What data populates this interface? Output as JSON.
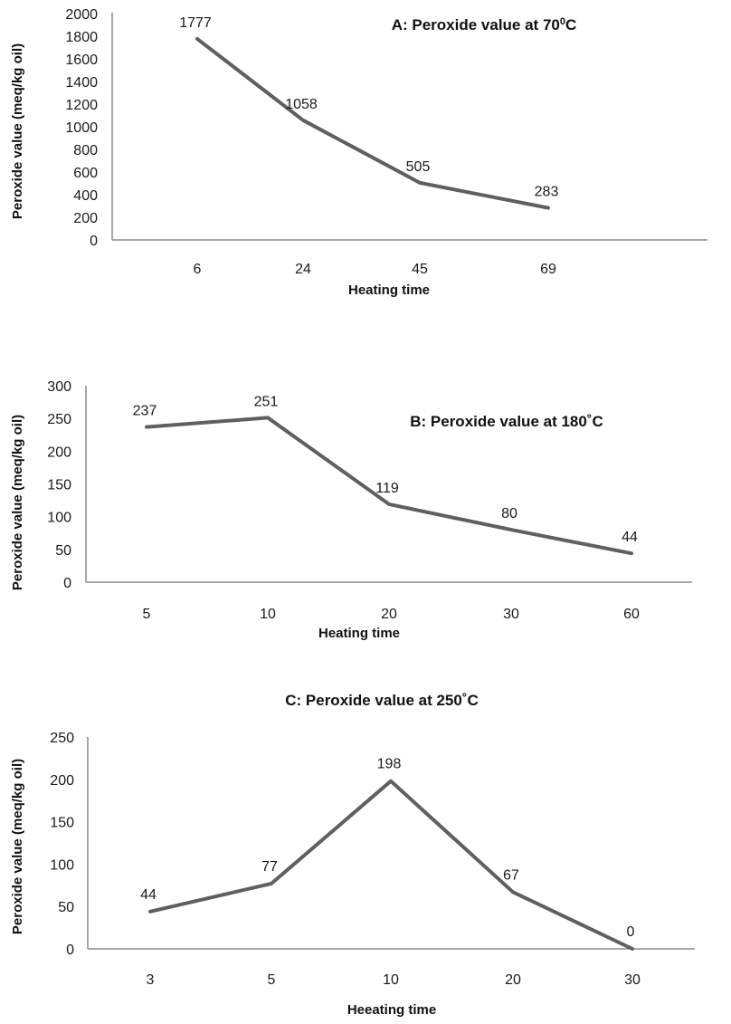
{
  "chart_data": [
    {
      "type": "line",
      "title": "A: Peroxide value at 70",
      "title_sup": "0",
      "title_suffix": "C",
      "xlabel": "Heating time",
      "ylabel": "Peroxide value  (meq/kg oil)",
      "categories": [
        "6",
        "24",
        "45",
        "69"
      ],
      "yticks": [
        "0",
        "200",
        "400",
        "600",
        "800",
        "1000",
        "1200",
        "1400",
        "1600",
        "1800",
        "2000"
      ],
      "ylim": [
        0,
        2000
      ],
      "series": [
        {
          "values": [
            1777,
            1058,
            505,
            283
          ],
          "labels": [
            "1777",
            "1058",
            "505",
            "283"
          ]
        }
      ],
      "color": "#5f5f5f"
    },
    {
      "type": "line",
      "title": "B: Peroxide value at 180˚C",
      "xlabel": "Heating time",
      "ylabel": "Peroxide value  (meq/kg oil)",
      "categories": [
        "5",
        "10",
        "20",
        "30",
        "60"
      ],
      "yticks": [
        "0",
        "50",
        "100",
        "150",
        "200",
        "250",
        "300"
      ],
      "ylim": [
        0,
        300
      ],
      "series": [
        {
          "values": [
            237,
            251,
            119,
            80,
            44
          ],
          "labels": [
            "237",
            "251",
            "119",
            "80",
            "44"
          ]
        }
      ],
      "color": "#5f5f5f"
    },
    {
      "type": "line",
      "title": "C: Peroxide value at 250˚C",
      "xlabel": "Heeating time",
      "ylabel": "Peroxide value  (meq/kg oil)",
      "categories": [
        "3",
        "5",
        "10",
        "20",
        "30"
      ],
      "yticks": [
        "0",
        "50",
        "100",
        "150",
        "200",
        "250"
      ],
      "ylim": [
        0,
        250
      ],
      "series": [
        {
          "values": [
            44,
            77,
            198,
            67,
            0
          ],
          "labels": [
            "44",
            "77",
            "198",
            "67",
            "0"
          ]
        }
      ],
      "color": "#5f5f5f"
    }
  ]
}
